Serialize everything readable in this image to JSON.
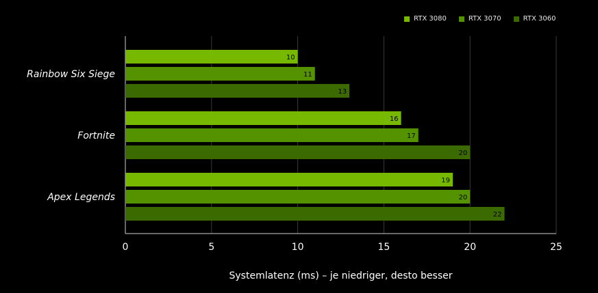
{
  "chart_data": {
    "type": "bar",
    "orientation": "horizontal",
    "categories": [
      "Rainbow Six Siege",
      "Fortnite",
      "Apex Legends"
    ],
    "series": [
      {
        "name": "RTX 3080",
        "color": "#76b900",
        "values": [
          10,
          16,
          19
        ]
      },
      {
        "name": "RTX 3070",
        "color": "#559200",
        "values": [
          11,
          17,
          20
        ]
      },
      {
        "name": "RTX 3060",
        "color": "#3b6a00",
        "values": [
          13,
          20,
          22
        ]
      }
    ],
    "xlabel": "Systemlatenz (ms) – je niedriger, desto besser",
    "xlim": [
      0,
      25
    ],
    "xticks": [
      0,
      5,
      10,
      15,
      20,
      25
    ],
    "grid": "vertical",
    "legend_position": "top-right",
    "data_labels": true
  }
}
